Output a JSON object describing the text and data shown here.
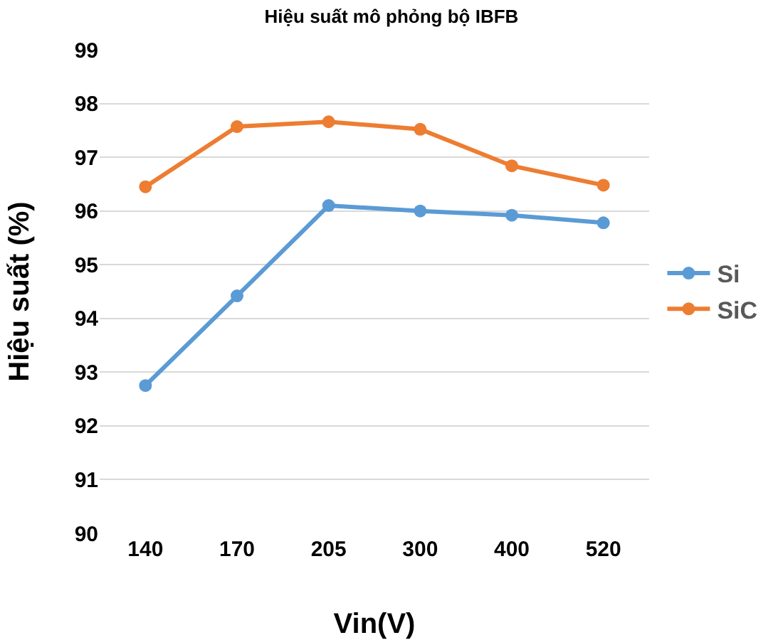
{
  "chart_data": {
    "type": "line",
    "title": "Hiệu suất mô phỏng bộ IBFB",
    "xlabel": "Vin(V)",
    "ylabel": "Hiệu suất (%)",
    "categories": [
      "140",
      "170",
      "205",
      "300",
      "400",
      "520"
    ],
    "series": [
      {
        "name": "Si",
        "color": "#5b9bd5",
        "values": [
          92.75,
          94.42,
          96.1,
          96.0,
          95.92,
          95.78
        ]
      },
      {
        "name": "SiC",
        "color": "#ed7d31",
        "values": [
          96.45,
          97.57,
          97.66,
          97.52,
          96.84,
          96.48
        ]
      }
    ],
    "ylim": [
      90,
      99
    ],
    "yticks": [
      90,
      91,
      92,
      93,
      94,
      95,
      96,
      97,
      98,
      99
    ],
    "grid": "y",
    "legend": "right",
    "marker": "circle",
    "line_style": "solid"
  }
}
